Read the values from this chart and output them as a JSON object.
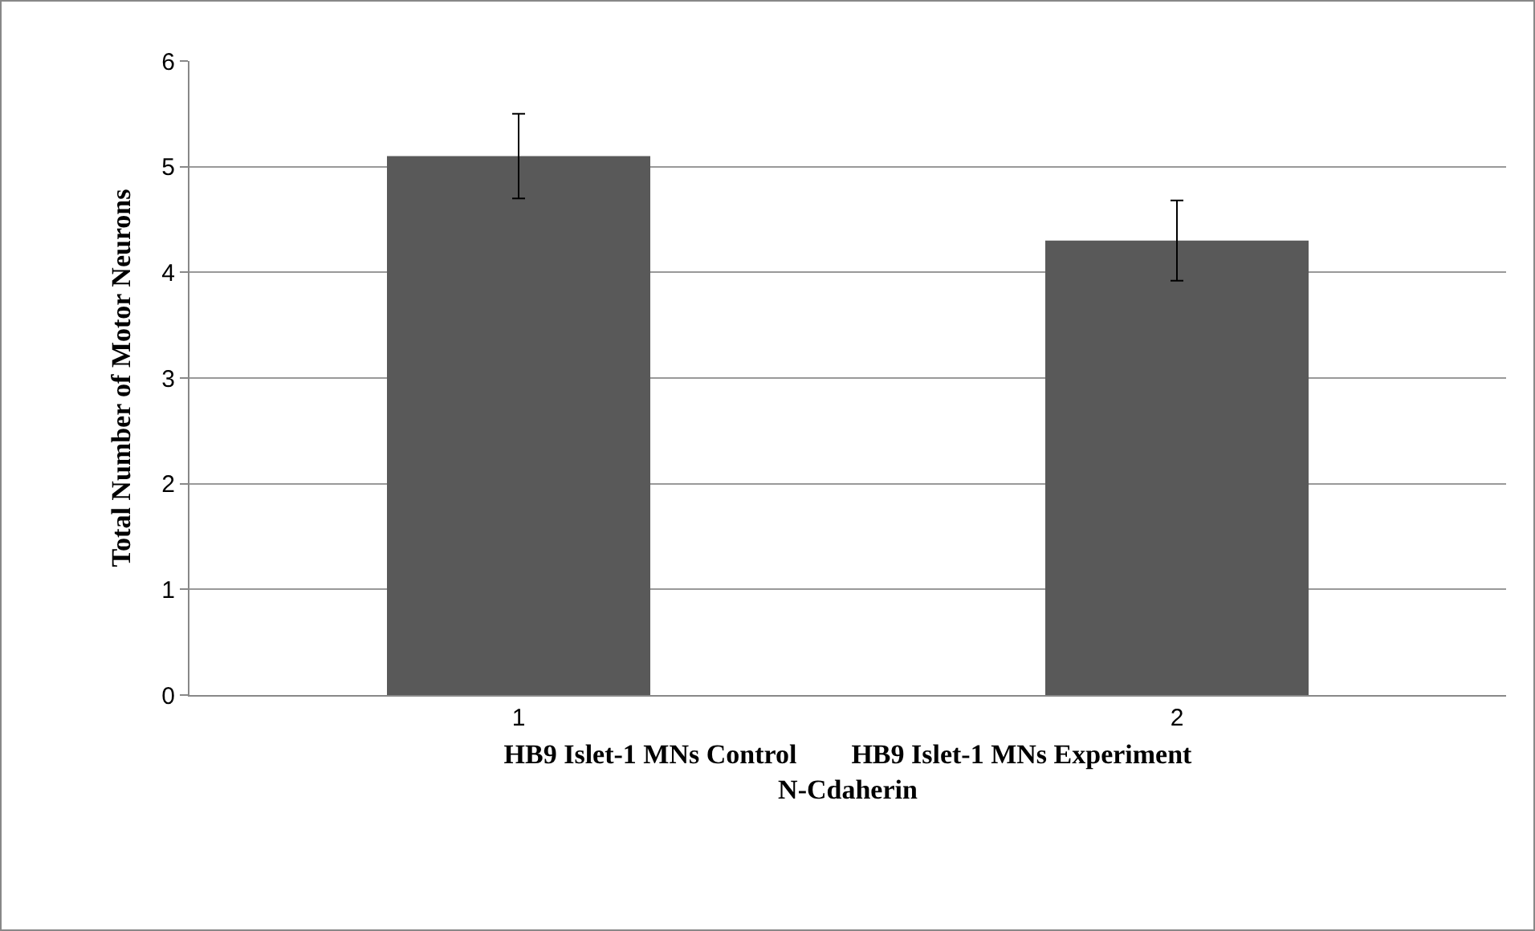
{
  "chart_data": {
    "type": "bar",
    "categories": [
      "1",
      "2"
    ],
    "values": [
      5.1,
      4.3
    ],
    "errors": [
      0.4,
      0.38
    ],
    "color": "#595959",
    "xlabel": "HB9 Islet-1 MNs Control        HB9 Islet-1 MNs Experiment\nN-Cdaherin",
    "ylabel": "Total Number of Motor Neurons",
    "ylim": [
      0,
      6
    ],
    "yticks": [
      0,
      1,
      2,
      3,
      4,
      5,
      6
    ],
    "grid": "y"
  }
}
